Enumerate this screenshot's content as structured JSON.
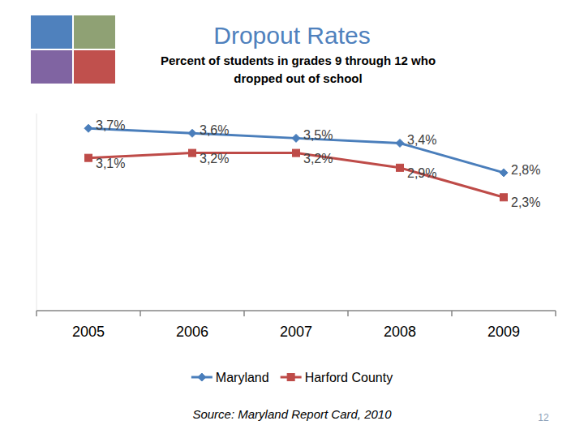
{
  "chart_data": {
    "type": "line",
    "title": "Dropout Rates",
    "subtitle": "Percent of students in grades 9 through 12 who dropped out of school",
    "categories": [
      "2005",
      "2006",
      "2007",
      "2008",
      "2009"
    ],
    "series": [
      {
        "name": "Maryland",
        "color": "#4a7ebb",
        "marker": "diamond",
        "line_style": "solid",
        "values": [
          3.7,
          3.6,
          3.5,
          3.4,
          2.8
        ],
        "value_labels": [
          "3,7%",
          "3,6%",
          "3,5%",
          "3,4%",
          "2,8%"
        ]
      },
      {
        "name": "Harford County",
        "color": "#be4b48",
        "marker": "square",
        "line_style": "solid",
        "values": [
          3.1,
          3.2,
          3.2,
          2.9,
          2.3
        ],
        "value_labels": [
          "3,1%",
          "3,2%",
          "3,2%",
          "2,9%",
          "2,3%"
        ]
      }
    ],
    "ylim": [
      0,
      4
    ],
    "grid": false,
    "legend": "bottom",
    "data_labels": true,
    "tick_labels": "x",
    "source": "Source: Maryland Report Card, 2010"
  },
  "page": {
    "number": "12"
  }
}
